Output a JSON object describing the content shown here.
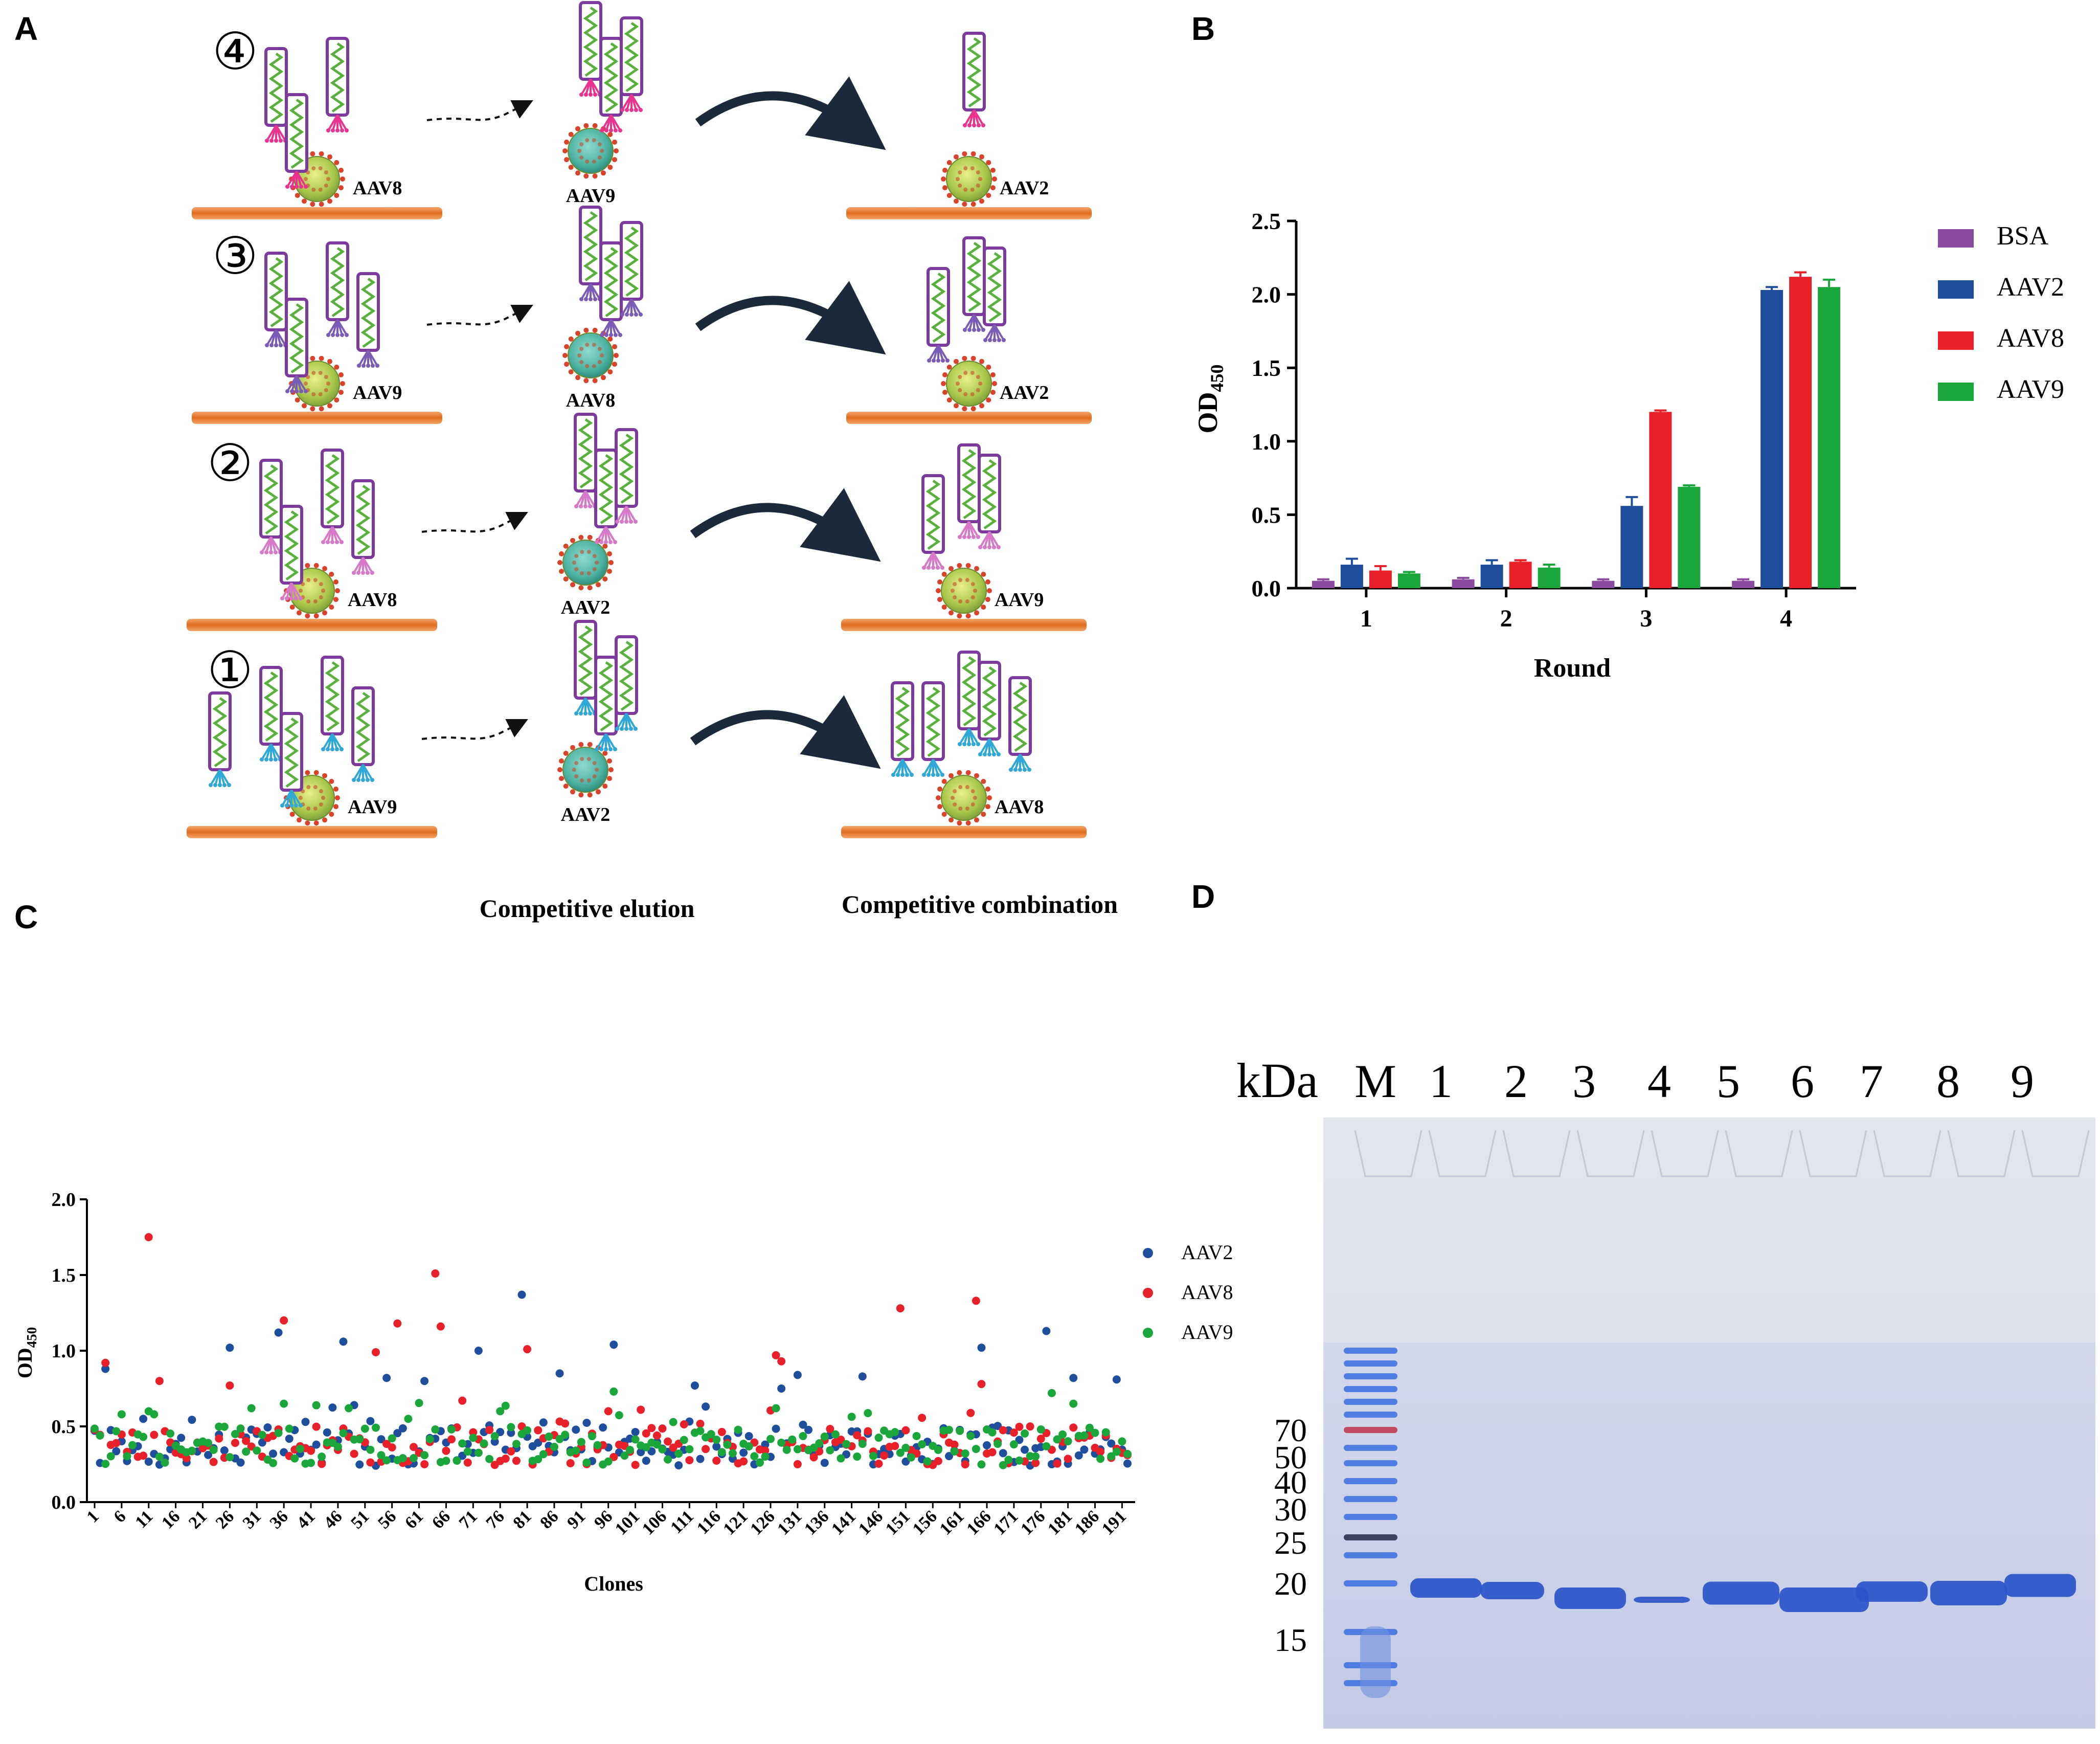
{
  "panels": {
    "a": "A",
    "b": "B",
    "c": "C",
    "d": "D"
  },
  "panel_a": {
    "rounds": [
      {
        "num": "④",
        "target": "AAV8",
        "eluent": "AAV9",
        "combine": "AAV2"
      },
      {
        "num": "③",
        "target": "AAV9",
        "eluent": "AAV8",
        "combine": "AAV2"
      },
      {
        "num": "②",
        "target": "AAV8",
        "eluent": "AAV2",
        "combine": "AAV9"
      },
      {
        "num": "①",
        "target": "AAV9",
        "eluent": "AAV2",
        "combine": "AAV8"
      }
    ],
    "elution_label": "Competitive elution",
    "combination_label": "Competitive combination",
    "colors": {
      "bar": "#e8762a",
      "frame": "#7b3a9c",
      "helix": "#58b13c",
      "virus": "#8bc34a",
      "spike": "#d9432b"
    }
  },
  "chart_data": [
    {
      "type": "bar",
      "ylabel_main": "OD",
      "ylabel_sub": "450",
      "xlabel": "Round",
      "categories": [
        "1",
        "2",
        "3",
        "4"
      ],
      "yticks": [
        "0.0",
        "0.5",
        "1.0",
        "1.5",
        "2.0",
        "2.5"
      ],
      "ylim": [
        0,
        2.5
      ],
      "series": [
        {
          "name": "BSA",
          "color": "#8a4a9e",
          "values": [
            0.05,
            0.06,
            0.05,
            0.05
          ],
          "err": [
            0.01,
            0.01,
            0.01,
            0.01
          ]
        },
        {
          "name": "AAV2",
          "color": "#1f4e9c",
          "values": [
            0.16,
            0.16,
            0.56,
            2.03
          ],
          "err": [
            0.04,
            0.03,
            0.06,
            0.02
          ]
        },
        {
          "name": "AAV8",
          "color": "#e8202a",
          "values": [
            0.12,
            0.18,
            1.2,
            2.12
          ],
          "err": [
            0.03,
            0.01,
            0.01,
            0.03
          ]
        },
        {
          "name": "AAV9",
          "color": "#1aa63a",
          "values": [
            0.1,
            0.14,
            0.69,
            2.05
          ],
          "err": [
            0.01,
            0.02,
            0.01,
            0.05
          ]
        }
      ]
    },
    {
      "type": "scatter",
      "ylabel_main": "OD",
      "ylabel_sub": "450",
      "xlabel": "Clones",
      "ylim": [
        0,
        2.0
      ],
      "xlim": [
        1,
        192
      ],
      "yticks": [
        "0.0",
        "0.5",
        "1.0",
        "1.5",
        "2.0"
      ],
      "xticks": [
        "1",
        "6",
        "11",
        "16",
        "21",
        "26",
        "31",
        "36",
        "41",
        "46",
        "51",
        "56",
        "61",
        "66",
        "71",
        "76",
        "81",
        "86",
        "91",
        "96",
        "101",
        "106",
        "111",
        "116",
        "121",
        "126",
        "131",
        "136",
        "141",
        "146",
        "151",
        "156",
        "161",
        "166",
        "171",
        "176",
        "181",
        "186",
        "191"
      ],
      "series": [
        {
          "name": "AAV2",
          "color": "#1f4e9c",
          "peaks": [
            [
              3,
              0.88
            ],
            [
              10,
              0.55
            ],
            [
              26,
              1.02
            ],
            [
              35,
              1.12
            ],
            [
              47,
              1.06
            ],
            [
              55,
              0.82
            ],
            [
              62,
              0.8
            ],
            [
              72,
              1.0
            ],
            [
              80,
              1.37
            ],
            [
              87,
              0.85
            ],
            [
              97,
              1.04
            ],
            [
              112,
              0.77
            ],
            [
              128,
              0.75
            ],
            [
              131,
              0.84
            ],
            [
              143,
              0.83
            ],
            [
              165,
              1.02
            ],
            [
              177,
              1.13
            ],
            [
              182,
              0.82
            ],
            [
              190,
              0.81
            ]
          ]
        },
        {
          "name": "AAV8",
          "color": "#e8202a",
          "peaks": [
            [
              3,
              0.92
            ],
            [
              11,
              1.75
            ],
            [
              13,
              0.8
            ],
            [
              26,
              0.77
            ],
            [
              36,
              1.2
            ],
            [
              53,
              0.99
            ],
            [
              57,
              1.18
            ],
            [
              64,
              1.51
            ],
            [
              65,
              1.16
            ],
            [
              69,
              0.67
            ],
            [
              81,
              1.01
            ],
            [
              96,
              0.6
            ],
            [
              127,
              0.97
            ],
            [
              128,
              0.93
            ],
            [
              150,
              1.28
            ],
            [
              164,
              1.33
            ],
            [
              165,
              0.78
            ]
          ]
        },
        {
          "name": "AAV9",
          "color": "#1aa63a",
          "peaks": [
            [
              6,
              0.58
            ],
            [
              11,
              0.6
            ],
            [
              30,
              0.62
            ],
            [
              36,
              0.65
            ],
            [
              48,
              0.62
            ],
            [
              59,
              0.55
            ],
            [
              76,
              0.6
            ],
            [
              97,
              0.73
            ],
            [
              127,
              0.62
            ],
            [
              178,
              0.72
            ],
            [
              182,
              0.65
            ]
          ]
        }
      ]
    }
  ],
  "gel": {
    "kda_label": "kDa",
    "lane_labels": [
      "M",
      "1",
      "2",
      "3",
      "4",
      "5",
      "6",
      "7",
      "8",
      "9"
    ],
    "markers": [
      "70",
      "50",
      "40",
      "30",
      "25",
      "20",
      "15"
    ],
    "colors": {
      "gel": "#c9d0e6",
      "band": "#2a55c8",
      "ladder": "#3a6ee0",
      "ladder70": "#c0304a"
    }
  }
}
